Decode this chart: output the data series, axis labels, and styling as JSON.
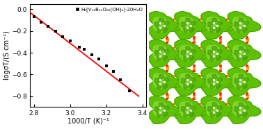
{
  "scatter_x": [
    2.8,
    2.84,
    2.88,
    2.92,
    2.96,
    3.0,
    3.05,
    3.08,
    3.12,
    3.16,
    3.2,
    3.24,
    3.28,
    3.33
  ],
  "scatter_y": [
    -0.07,
    -0.12,
    -0.16,
    -0.2,
    -0.25,
    -0.29,
    -0.35,
    -0.37,
    -0.42,
    -0.46,
    -0.52,
    -0.57,
    -0.65,
    -0.75
  ],
  "line_x": [
    2.78,
    3.38
  ],
  "line_y": [
    -0.03,
    -0.8
  ],
  "xlabel": "1000/T (K)⁻¹",
  "ylabel": "logσT/(S cm⁻¹)",
  "legend_label": "H₀[V₁₂B₁₁O₅₆(OH)₆]·20H₂O",
  "xlim": [
    2.78,
    3.42
  ],
  "ylim": [
    -0.9,
    0.05
  ],
  "xticks": [
    2.8,
    3.0,
    3.2,
    3.4
  ],
  "yticks": [
    0.0,
    -0.2,
    -0.4,
    -0.6,
    -0.8
  ],
  "scatter_color": "black",
  "line_color": "red",
  "background_color": "white",
  "tick_fontsize": 6.5,
  "label_fontsize": 7,
  "legend_fontsize": 5,
  "green_light": "#5DC000",
  "green_dark": "#3A9000",
  "green_highlight": "#90E040",
  "red_connector": "#FF2200",
  "orange_connector": "#FF8800"
}
